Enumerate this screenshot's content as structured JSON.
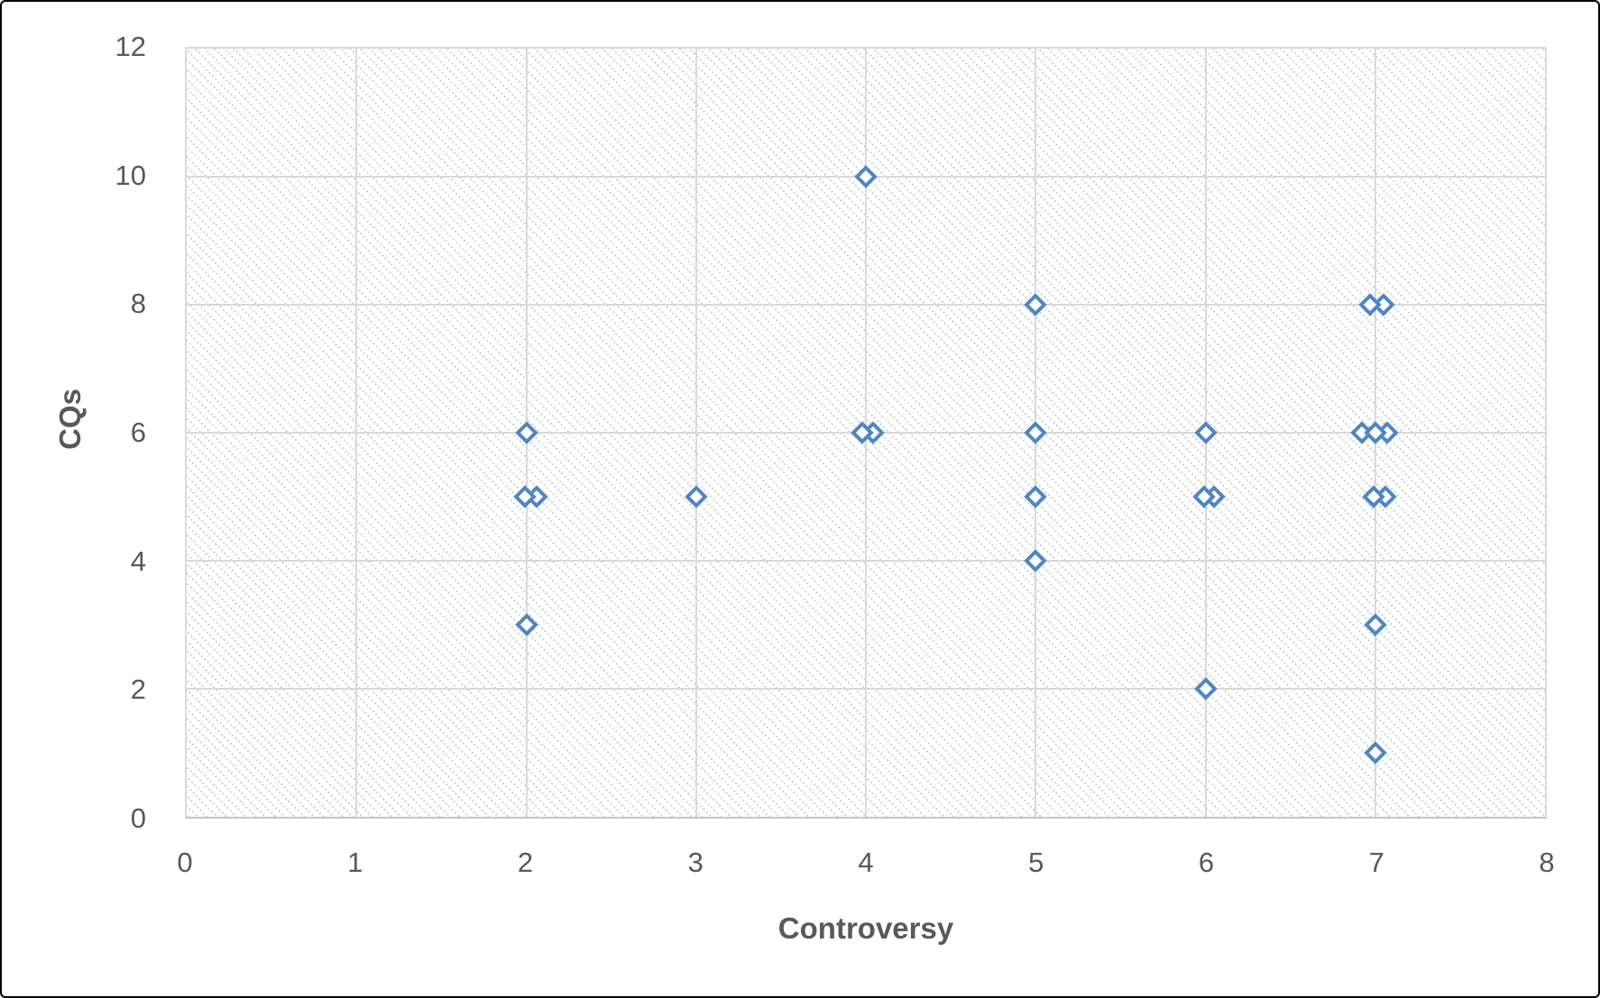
{
  "chart_data": {
    "type": "scatter",
    "title": "",
    "xlabel": "Controversy",
    "ylabel": "CQs",
    "xlim": [
      0,
      8
    ],
    "ylim": [
      0,
      12
    ],
    "x_ticks": [
      "0",
      "1",
      "2",
      "3",
      "4",
      "5",
      "6",
      "7",
      "8"
    ],
    "y_ticks": [
      "0",
      "2",
      "4",
      "6",
      "8",
      "10",
      "12"
    ],
    "grid": true,
    "legend": "none",
    "marker": {
      "shape": "diamond",
      "fill": "#ffffff",
      "stroke": "#4E86C4",
      "stroke_width_px": 4
    },
    "colors": {
      "marker_stroke": "#4E86C4",
      "gridline": "#d9d9d9",
      "axis_line": "#c6c6c6",
      "text": "#595959",
      "plot_hatch": "#d7d7d7",
      "background": "#ffffff",
      "frame_border": "#000000"
    },
    "points": [
      [
        4,
        10
      ],
      [
        5,
        8
      ],
      [
        7.05,
        8
      ],
      [
        6.97,
        8
      ],
      [
        2,
        6
      ],
      [
        4.04,
        6
      ],
      [
        3.98,
        6
      ],
      [
        5,
        6
      ],
      [
        6,
        6
      ],
      [
        7.07,
        6
      ],
      [
        6.92,
        6
      ],
      [
        7.0,
        6
      ],
      [
        2.06,
        5
      ],
      [
        1.99,
        5
      ],
      [
        3,
        5
      ],
      [
        5,
        5
      ],
      [
        6.05,
        5
      ],
      [
        5.99,
        5
      ],
      [
        7.06,
        5
      ],
      [
        6.99,
        5
      ],
      [
        5,
        4
      ],
      [
        2,
        3
      ],
      [
        7,
        3
      ],
      [
        6,
        2
      ],
      [
        7,
        1
      ]
    ]
  }
}
